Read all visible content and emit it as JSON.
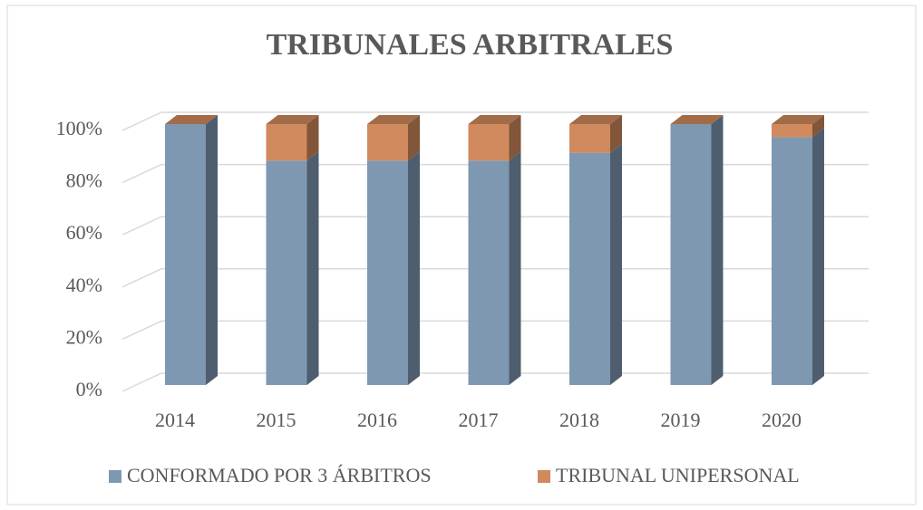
{
  "chart_data": {
    "type": "bar",
    "stacked": true,
    "title": "TRIBUNALES ARBITRALES",
    "categories": [
      "2014",
      "2015",
      "2016",
      "2017",
      "2018",
      "2019",
      "2020"
    ],
    "series": [
      {
        "name": "CONFORMADO POR 3 ÁRBITROS",
        "color": "#7f98b2",
        "values": [
          100,
          86,
          86,
          86,
          89,
          100,
          95
        ]
      },
      {
        "name": "TRIBUNAL UNIPERSONAL",
        "color": "#d08a5d",
        "values": [
          0,
          14,
          14,
          14,
          11,
          0,
          5
        ]
      }
    ],
    "ylim": [
      0,
      100
    ],
    "yticks": [
      {
        "value": 0,
        "label": "0%"
      },
      {
        "value": 20,
        "label": "20%"
      },
      {
        "value": 40,
        "label": "40%"
      },
      {
        "value": 60,
        "label": "60%"
      },
      {
        "value": 80,
        "label": "80%"
      },
      {
        "value": 100,
        "label": "100%"
      }
    ],
    "grid": true,
    "legend": "bottom"
  }
}
